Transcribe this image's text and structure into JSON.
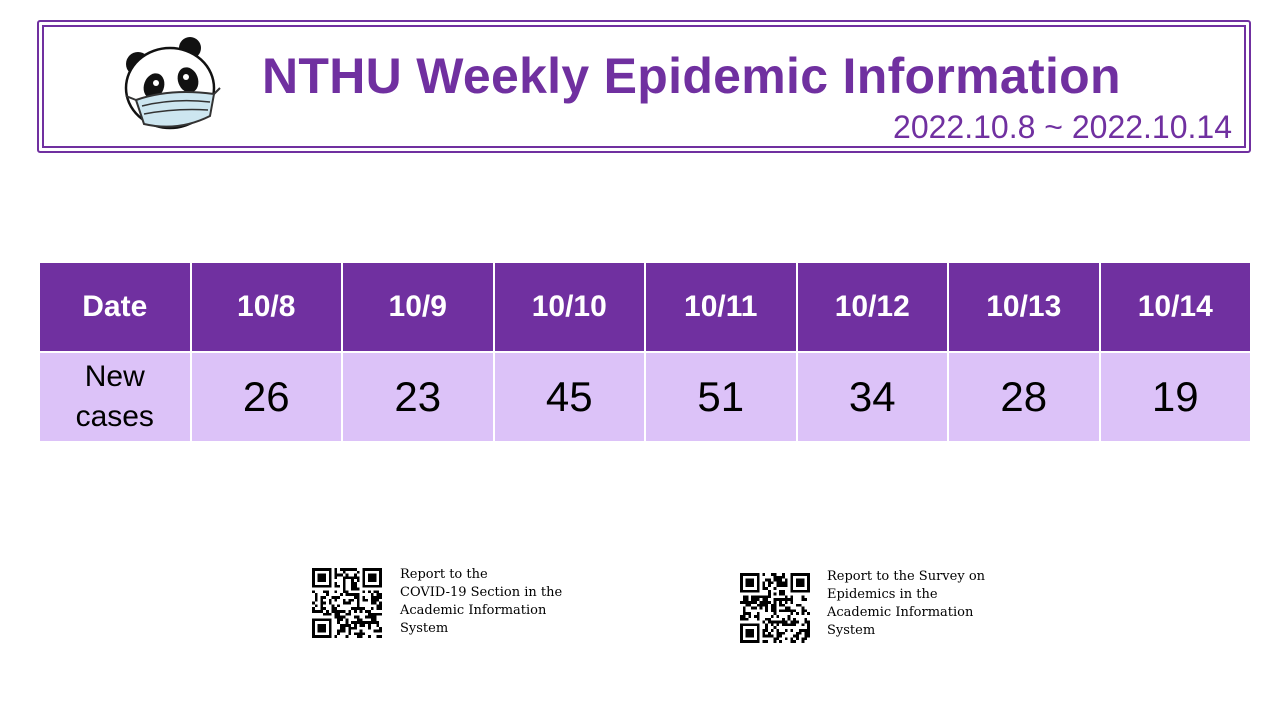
{
  "header": {
    "title": "NTHU Weekly Epidemic Information",
    "date_range": "2022.10.8 ~ 2022.10.14",
    "mascot_icon": "panda-with-mask-icon"
  },
  "table": {
    "header_row_label": "Date",
    "dates": [
      "10/8",
      "10/9",
      "10/10",
      "10/11",
      "10/12",
      "10/13",
      "10/14"
    ],
    "cases_row_label_line1": "New",
    "cases_row_label_line2": "cases",
    "new_cases": [
      "26",
      "23",
      "45",
      "51",
      "34",
      "28",
      "19"
    ]
  },
  "qr_codes": [
    {
      "icon": "qr-code-icon",
      "line1": "Report to the",
      "line2": "COVID-19 Section in the",
      "line3": "Academic Information",
      "line4": "System"
    },
    {
      "icon": "qr-code-icon",
      "line1": "Report to the Survey on",
      "line2": "Epidemics in the",
      "line3": "Academic Information",
      "line4": "System"
    }
  ],
  "colors": {
    "accent": "#7030a0",
    "row_fill": "#dcc2f8"
  }
}
